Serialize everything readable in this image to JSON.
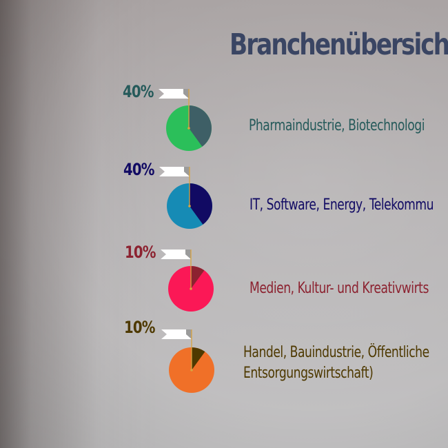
{
  "title": "Branchenübersich",
  "colors": {
    "title": "#3a4563",
    "pin": "#d9a441",
    "flag": "#ffffff",
    "flag_shadow": "#9b9b9b"
  },
  "chart_data": {
    "type": "pie",
    "title": "Branchenübersich",
    "charts": [
      {
        "percent_label": "40%",
        "value": 40,
        "label_lines": [
          "Pharmaindustrie, Biotechnologi"
        ],
        "color_slice": "#3e5f66",
        "color_rest": "#2bbf5a",
        "color_text": "#255a5a"
      },
      {
        "percent_label": "40%",
        "value": 40,
        "label_lines": [
          "IT, Software, Energy, Telekommu"
        ],
        "color_slice": "#110a63",
        "color_rest": "#168bb5",
        "color_text": "#110a63"
      },
      {
        "percent_label": "10%",
        "value": 10,
        "label_lines": [
          "Medien, Kultur- und Kreativwirts"
        ],
        "color_slice": "#8c2230",
        "color_rest": "#fb1856",
        "color_text": "#8c2230"
      },
      {
        "percent_label": "10%",
        "value": 10,
        "label_lines": [
          "Handel, Bauindustrie, Öffentliche",
          "Entsorgungswirtschaft)"
        ],
        "color_slice": "#4e3900",
        "color_rest": "#f07028",
        "color_text": "#4e3900"
      }
    ]
  }
}
